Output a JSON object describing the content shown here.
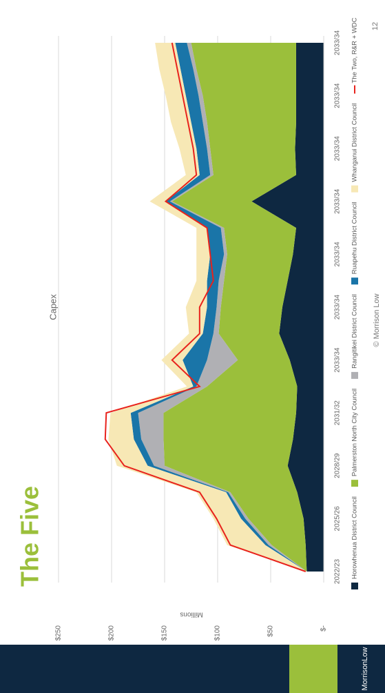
{
  "title": "The Five",
  "logo": "MorrisonLow",
  "footer": "© Morrison Low",
  "page_number": "12",
  "chart_data": {
    "type": "stacked_area",
    "title": "Capex",
    "y_label": "Millions",
    "categories": [
      "2022/23",
      null,
      "2025/26",
      null,
      "2028/29",
      null,
      "2031/32",
      null,
      "2033/34",
      null,
      "2033/34",
      null,
      "2033/34",
      null,
      "2033/34",
      null,
      "2033/34",
      null,
      "2033/34",
      null,
      "2033/34"
    ],
    "ylim": [
      0,
      250
    ],
    "yticks": [
      {
        "value": 0,
        "label": "$-"
      },
      {
        "value": 50,
        "label": "$50"
      },
      {
        "value": 100,
        "label": "$100"
      },
      {
        "value": 150,
        "label": "$150"
      },
      {
        "value": 200,
        "label": "$200"
      },
      {
        "value": 250,
        "label": "$250"
      }
    ],
    "grid": true,
    "legend": "bottom",
    "series": [
      {
        "name": "Horowhenua District Council",
        "color": "#0e2841",
        "type": "area",
        "values": [
          16,
          17,
          19,
          25,
          34,
          29,
          26,
          25,
          32,
          42,
          39,
          34,
          29,
          26,
          68,
          26,
          27,
          26,
          26,
          26,
          26
        ]
      },
      {
        "name": "Palmerston North City Council",
        "color": "#9bbf3b",
        "type": "area",
        "values": [
          0,
          32,
          52,
          63,
          116,
          122,
          125,
          85,
          49,
          57,
          58,
          60,
          62,
          68,
          75,
          78,
          80,
          84,
          88,
          94,
          99
        ]
      },
      {
        "name": "Rangitikei District Council",
        "color": "#b0b0b4",
        "type": "area",
        "values": [
          0,
          3,
          3,
          2,
          10,
          21,
          24,
          10,
          29,
          5,
          4,
          5,
          3,
          3,
          2,
          3,
          3,
          4,
          4,
          3,
          4
        ]
      },
      {
        "name": "Ruapehu District Council",
        "color": "#1a75a8",
        "type": "area",
        "values": [
          0,
          3,
          4,
          2,
          6,
          7,
          7,
          3,
          23,
          10,
          9,
          11,
          13,
          13,
          4,
          10,
          10,
          11,
          12,
          12,
          11
        ]
      },
      {
        "name": "Whanganui District Council",
        "color": "#f7e8b5",
        "type": "area",
        "values": [
          0,
          36,
          26,
          28,
          29,
          24,
          19,
          6,
          20,
          13,
          20,
          10,
          13,
          10,
          15,
          13,
          16,
          19,
          19,
          20,
          19
        ]
      },
      {
        "name": "The Two, R&R + WDC",
        "color": "#e8221c",
        "type": "line",
        "values": [
          17,
          88,
          101,
          117,
          188,
          206,
          205,
          117,
          143,
          117,
          117,
          104,
          107,
          110,
          149,
          120,
          123,
          128,
          133,
          138,
          143
        ]
      }
    ]
  }
}
